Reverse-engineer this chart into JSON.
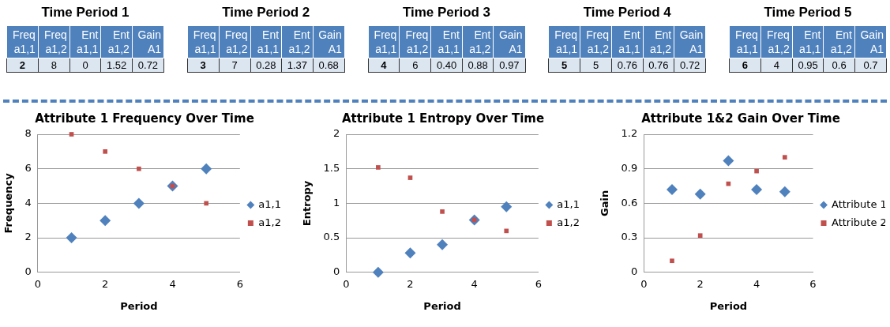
{
  "chart_data": [
    {
      "type": "other",
      "title": "Time Period 1",
      "categories": [
        "Freq a1,1",
        "Freq a1,2",
        "Ent a1,1",
        "Ent a1,2",
        "Gain A1"
      ],
      "value_labels": [
        "2",
        "8",
        "0",
        "1.52",
        "0.72"
      ]
    },
    {
      "type": "other",
      "title": "Time Period 2",
      "categories": [
        "Freq a1,1",
        "Freq a1,2",
        "Ent a1,1",
        "Ent a1,2",
        "Gain A1"
      ],
      "value_labels": [
        "3",
        "7",
        "0.28",
        "1.37",
        "0.68"
      ]
    },
    {
      "type": "other",
      "title": "Time Period 3",
      "categories": [
        "Freq a1,1",
        "Freq a1,2",
        "Ent a1,1",
        "Ent a1,2",
        "Gain A1"
      ],
      "value_labels": [
        "4",
        "6",
        "0.40",
        "0.88",
        "0.97"
      ]
    },
    {
      "type": "other",
      "title": "Time Period 4",
      "categories": [
        "Freq a1,1",
        "Freq a1,2",
        "Ent a1,1",
        "Ent a1,2",
        "Gain A1"
      ],
      "value_labels": [
        "5",
        "5",
        "0.76",
        "0.76",
        "0.72"
      ]
    },
    {
      "type": "other",
      "title": "Time Period 5",
      "categories": [
        "Freq a1,1",
        "Freq a1,2",
        "Ent a1,1",
        "Ent a1,2",
        "Gain A1"
      ],
      "value_labels": [
        "6",
        "4",
        "0.95",
        "0.6",
        "0.7"
      ]
    },
    {
      "type": "scatter",
      "title": "Attribute 1 Frequency Over Time",
      "xlabel": "Period",
      "ylabel": "Frequency",
      "x": [
        1,
        2,
        3,
        4,
        5
      ],
      "xlim": [
        0,
        6
      ],
      "xticks": [
        0,
        2,
        4,
        6
      ],
      "ylim": [
        0,
        8
      ],
      "yticks": [
        0,
        2,
        4,
        6,
        8
      ],
      "grid": "y",
      "legend": "right",
      "series": [
        {
          "name": "a1,1",
          "color": "#4f81bd",
          "marker": "diamond",
          "values": [
            2,
            3,
            4,
            5,
            6
          ]
        },
        {
          "name": "a1,2",
          "color": "#c0504d",
          "marker": "square",
          "values": [
            8,
            7,
            6,
            5,
            4
          ]
        }
      ]
    },
    {
      "type": "scatter",
      "title": "Attribute 1 Entropy Over Time",
      "xlabel": "Period",
      "ylabel": "Entropy",
      "x": [
        1,
        2,
        3,
        4,
        5
      ],
      "xlim": [
        0,
        6
      ],
      "xticks": [
        0,
        2,
        4,
        6
      ],
      "ylim": [
        0,
        2
      ],
      "yticks": [
        0,
        0.5,
        1,
        1.5,
        2
      ],
      "grid": "y",
      "legend": "right",
      "series": [
        {
          "name": "a1,1",
          "color": "#4f81bd",
          "marker": "diamond",
          "values": [
            0,
            0.28,
            0.4,
            0.76,
            0.95
          ]
        },
        {
          "name": "a1,2",
          "color": "#c0504d",
          "marker": "square",
          "values": [
            1.52,
            1.37,
            0.88,
            0.76,
            0.6
          ]
        }
      ]
    },
    {
      "type": "scatter",
      "title": "Attribute 1&2 Gain Over Time",
      "xlabel": "Period",
      "ylabel": "Gain",
      "x": [
        1,
        2,
        3,
        4,
        5
      ],
      "xlim": [
        0,
        6
      ],
      "xticks": [
        0,
        2,
        4,
        6
      ],
      "ylim": [
        0,
        1.2
      ],
      "yticks": [
        0,
        0.3,
        0.6,
        0.9,
        1.2
      ],
      "grid": "y",
      "legend": "right",
      "series": [
        {
          "name": "Attribute 1",
          "color": "#4f81bd",
          "marker": "diamond",
          "values": [
            0.72,
            0.68,
            0.97,
            0.72,
            0.7
          ]
        },
        {
          "name": "Attribute 2",
          "color": "#c0504d",
          "marker": "square",
          "values": [
            0.1,
            0.32,
            0.77,
            0.88,
            1.0
          ]
        }
      ]
    }
  ]
}
